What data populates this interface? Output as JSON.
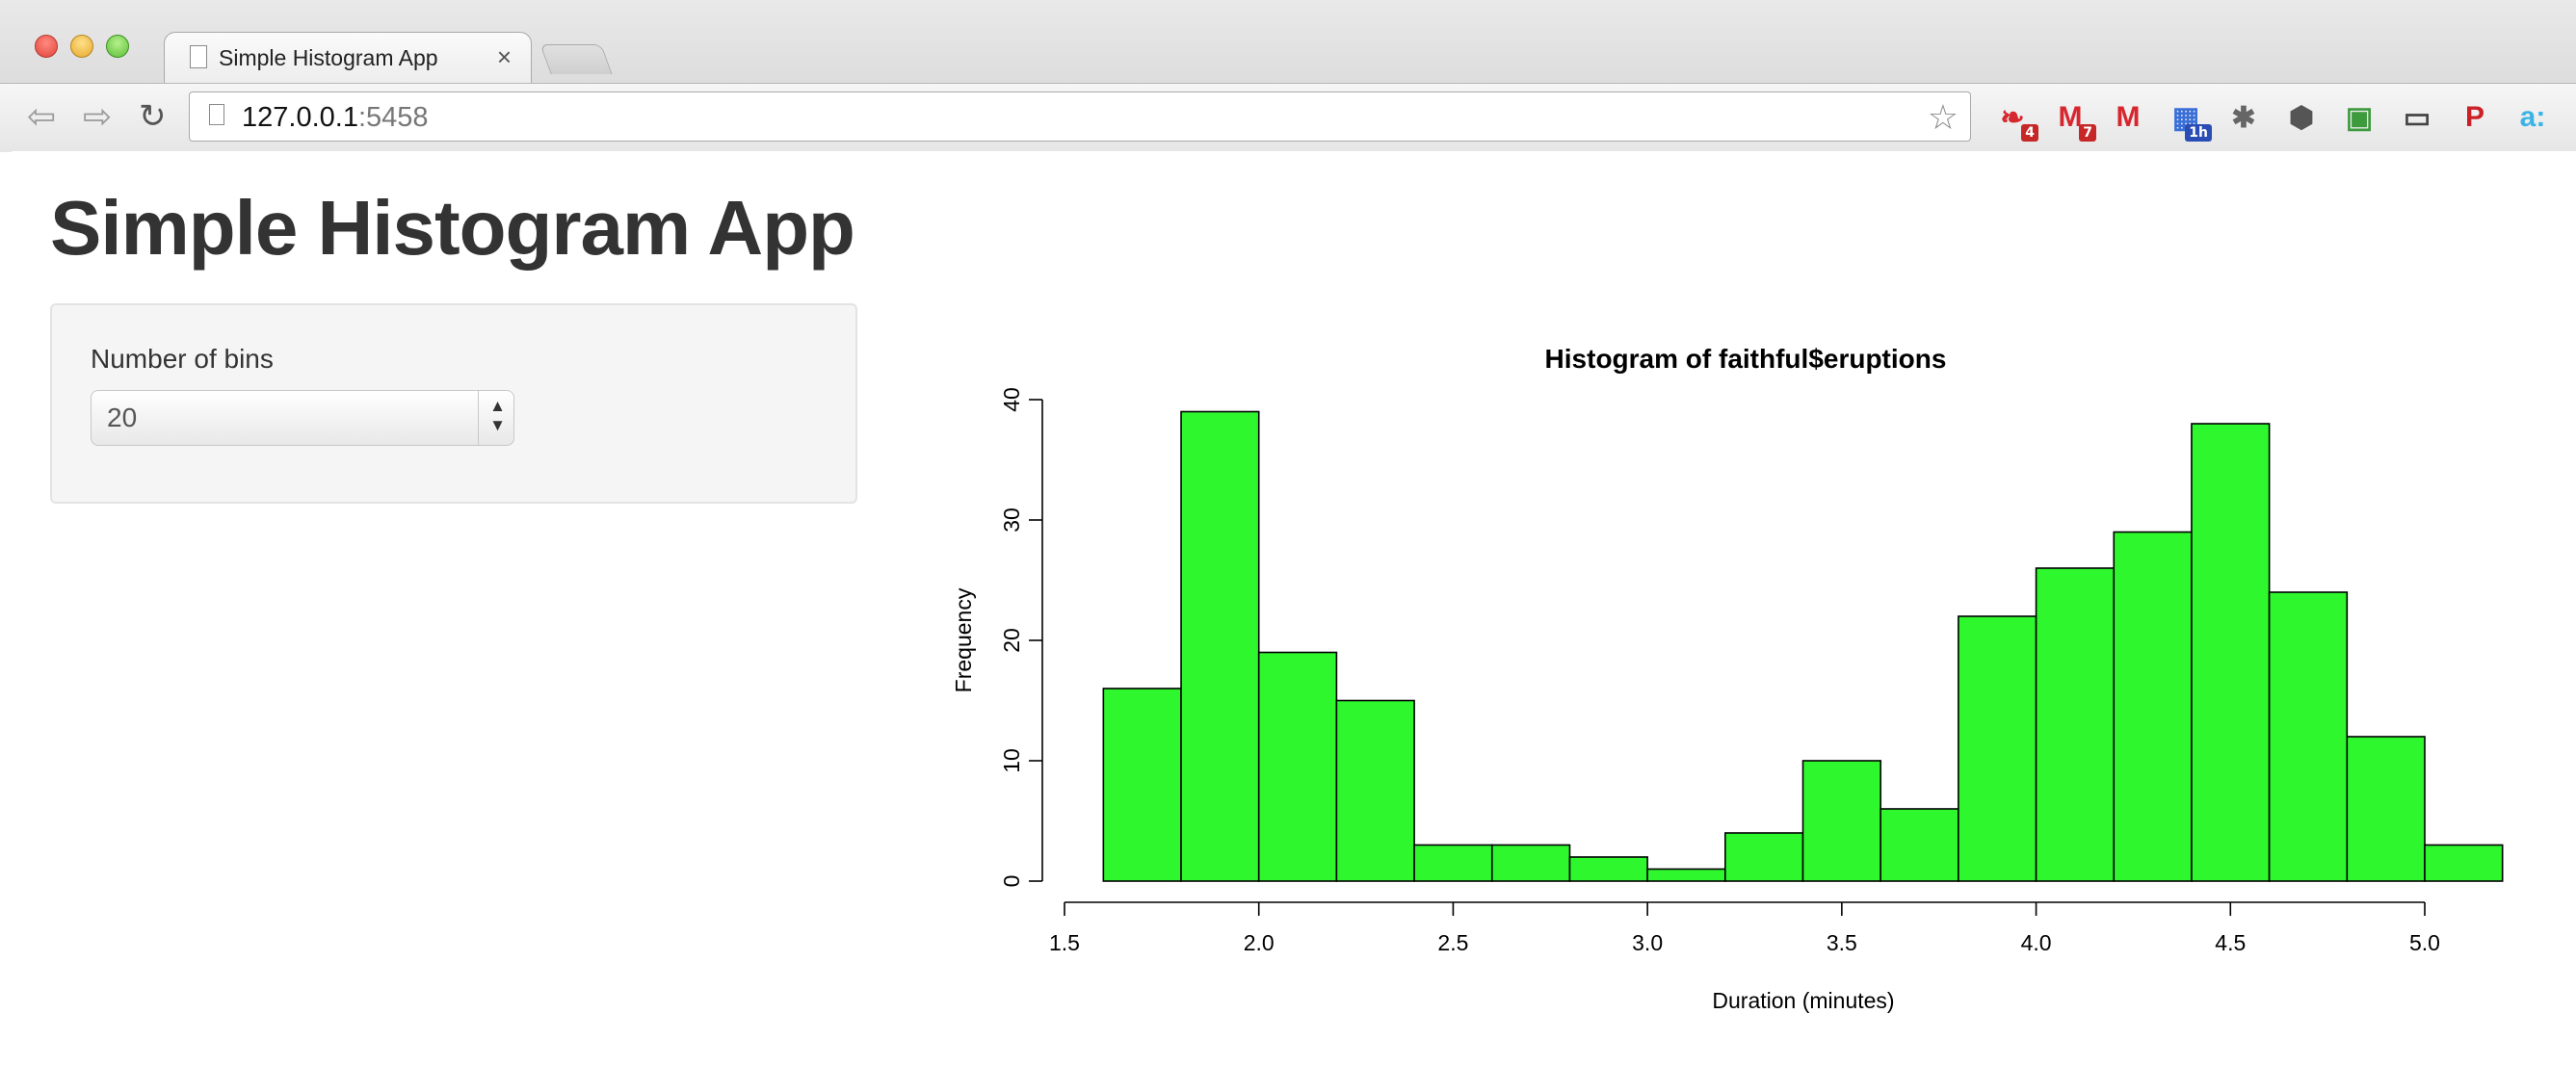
{
  "browser": {
    "tab_title": "Simple Histogram App",
    "tab_close": "×",
    "url_host": "127.0.0.1",
    "url_port": ":5458",
    "icons": [
      "back-arrow-icon",
      "forward-arrow-icon",
      "reload-icon",
      "page-icon",
      "bookmark-star-icon"
    ],
    "extensions": [
      {
        "name": "ext-red-bird-icon",
        "glyph": "❧",
        "color": "#d6262e",
        "badge": "4",
        "badge_color": "#c62828"
      },
      {
        "name": "ext-gmail-icon",
        "glyph": "M",
        "color": "#d6262e",
        "badge": "7",
        "badge_color": "#c62828"
      },
      {
        "name": "ext-gmail-alt-icon",
        "glyph": "M",
        "color": "#d6262e",
        "badge": "",
        "badge_color": ""
      },
      {
        "name": "ext-calendar-icon",
        "glyph": "▦",
        "color": "#3a6fd8",
        "badge": "1h",
        "badge_color": "#2a4db5"
      },
      {
        "name": "ext-bug-icon",
        "glyph": "✱",
        "color": "#666666",
        "badge": "",
        "badge_color": ""
      },
      {
        "name": "ext-hex-icon",
        "glyph": "⬢",
        "color": "#555555",
        "badge": "",
        "badge_color": ""
      },
      {
        "name": "ext-evernote-icon",
        "glyph": "▣",
        "color": "#3d9a3d",
        "badge": "",
        "badge_color": ""
      },
      {
        "name": "ext-cast-icon",
        "glyph": "▭",
        "color": "#444444",
        "badge": "",
        "badge_color": ""
      },
      {
        "name": "ext-pinterest-icon",
        "glyph": "P",
        "color": "#cb2027",
        "badge": "",
        "badge_color": ""
      },
      {
        "name": "ext-amazon-icon",
        "glyph": "a:",
        "color": "#3bb3e6",
        "badge": "",
        "badge_color": ""
      }
    ]
  },
  "page": {
    "title": "Simple Histogram App",
    "sidebar": {
      "bins_label": "Number of bins",
      "bins_value": "20"
    }
  },
  "chart_data": {
    "type": "bar",
    "title": "Histogram of faithful$eruptions",
    "xlabel": "Duration (minutes)",
    "ylabel": "Frequency",
    "bar_color": "#2ef72e",
    "bin_edges": [
      1.6,
      1.8,
      2.0,
      2.2,
      2.4,
      2.6,
      2.8,
      3.0,
      3.2,
      3.4,
      3.6,
      3.8,
      4.0,
      4.2,
      4.4,
      4.6,
      4.8,
      5.0,
      5.2
    ],
    "values": [
      16,
      39,
      19,
      15,
      3,
      3,
      2,
      1,
      4,
      10,
      6,
      22,
      26,
      29,
      38,
      24,
      12,
      3
    ],
    "x_ticks": [
      "1.5",
      "2.0",
      "2.5",
      "3.0",
      "3.5",
      "4.0",
      "4.5",
      "5.0"
    ],
    "y_ticks": [
      "0",
      "10",
      "20",
      "30",
      "40"
    ],
    "xlim": [
      1.5,
      5.0
    ],
    "ylim": [
      0,
      40
    ],
    "grid": false
  }
}
